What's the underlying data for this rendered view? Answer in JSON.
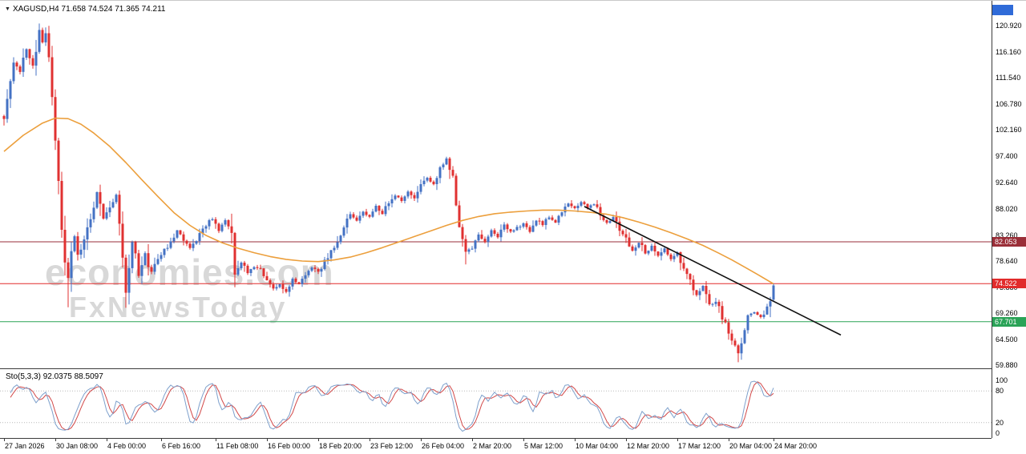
{
  "header": {
    "symbol_line": "XAGUSD,H4 71.658 74.524 71.365 74.211"
  },
  "watermark": {
    "line1": "economies.com",
    "line2": "FxNewsToday"
  },
  "y_axis": {
    "ticks": [
      "120.920",
      "116.160",
      "111.540",
      "106.780",
      "102.160",
      "97.400",
      "92.640",
      "88.020",
      "83.260",
      "78.640",
      "73.880",
      "69.260",
      "64.500",
      "59.880"
    ]
  },
  "x_axis": {
    "labels": [
      {
        "t": "27 Jan 2026",
        "i": 0
      },
      {
        "t": "30 Jan 08:00",
        "i": 16
      },
      {
        "t": "4 Feb 00:00",
        "i": 32
      },
      {
        "t": "6 Feb 16:00",
        "i": 49
      },
      {
        "t": "11 Feb 08:00",
        "i": 66
      },
      {
        "t": "16 Feb 00:00",
        "i": 82
      },
      {
        "t": "18 Feb 20:00",
        "i": 98
      },
      {
        "t": "23 Feb 12:00",
        "i": 114
      },
      {
        "t": "26 Feb 04:00",
        "i": 130
      },
      {
        "t": "2 Mar 20:00",
        "i": 146
      },
      {
        "t": "5 Mar 12:00",
        "i": 162
      },
      {
        "t": "10 Mar 04:00",
        "i": 178
      },
      {
        "t": "12 Mar 20:00",
        "i": 194
      },
      {
        "t": "17 Mar 12:00",
        "i": 210
      },
      {
        "t": "20 Mar 04:00",
        "i": 226
      },
      {
        "t": "24 Mar 20:00",
        "i": 240
      }
    ]
  },
  "price_labels": [
    {
      "text": "82.053",
      "price": 82.053,
      "color": "#9a2e38"
    },
    {
      "text": "74.522",
      "price": 74.522,
      "color": "#e12b2b"
    },
    {
      "text": "67.701",
      "price": 67.701,
      "color": "#2aa357"
    }
  ],
  "top_badge": {
    "color": "#2f6bd8"
  },
  "indicator": {
    "label": "Sto(5,3,3) 92.0375 88.5097",
    "name": "Stochastic Oscillator",
    "params": "5,3,3",
    "levels": [
      {
        "text": "100",
        "value": 100
      },
      {
        "text": "80",
        "value": 80
      },
      {
        "text": "20",
        "value": 20
      },
      {
        "text": "0",
        "value": 0
      }
    ]
  },
  "chart_data": {
    "type": "candlestick",
    "symbol": "XAGUSD",
    "timeframe": "H4",
    "title": "XAGUSD,H4",
    "ohlc_current": {
      "open": 71.658,
      "high": 74.524,
      "low": 71.365,
      "close": 74.211
    },
    "ylim": [
      59.88,
      120.92
    ],
    "candle_count": 241,
    "close_anchors": [
      [
        0,
        104.5
      ],
      [
        2,
        110
      ],
      [
        3,
        114
      ],
      [
        5,
        112.5
      ],
      [
        7,
        116.5
      ],
      [
        9,
        114
      ],
      [
        11,
        120.3
      ],
      [
        12,
        118
      ],
      [
        13,
        119.5
      ],
      [
        14,
        116
      ],
      [
        15,
        108
      ],
      [
        16,
        100
      ],
      [
        17,
        93
      ],
      [
        18,
        84
      ],
      [
        19,
        78
      ],
      [
        20,
        76
      ],
      [
        21,
        80
      ],
      [
        22,
        83
      ],
      [
        23,
        80
      ],
      [
        25,
        82
      ],
      [
        26,
        85
      ],
      [
        28,
        88.5
      ],
      [
        29,
        91
      ],
      [
        31,
        86
      ],
      [
        33,
        88.5
      ],
      [
        35,
        91
      ],
      [
        36,
        86
      ],
      [
        37,
        80
      ],
      [
        38,
        72.5
      ],
      [
        40,
        82
      ],
      [
        42,
        76
      ],
      [
        44,
        80
      ],
      [
        46,
        76.5
      ],
      [
        48,
        79
      ],
      [
        50,
        80.5
      ],
      [
        52,
        82
      ],
      [
        54,
        84
      ],
      [
        56,
        82.5
      ],
      [
        58,
        81
      ],
      [
        60,
        82.5
      ],
      [
        62,
        84.5
      ],
      [
        65,
        86.3
      ],
      [
        67,
        84
      ],
      [
        69,
        85.8
      ],
      [
        71,
        84.5
      ],
      [
        72,
        75.5
      ],
      [
        74,
        78.5
      ],
      [
        76,
        76.5
      ],
      [
        78,
        77.5
      ],
      [
        80,
        77
      ],
      [
        82,
        75
      ],
      [
        84,
        73.5
      ],
      [
        86,
        74.5
      ],
      [
        88,
        73
      ],
      [
        90,
        75.5
      ],
      [
        92,
        74.5
      ],
      [
        94,
        76
      ],
      [
        96,
        77.5
      ],
      [
        98,
        76.5
      ],
      [
        100,
        78.5
      ],
      [
        102,
        80.5
      ],
      [
        104,
        82
      ],
      [
        106,
        84.5
      ],
      [
        108,
        87
      ],
      [
        110,
        86
      ],
      [
        112,
        87.5
      ],
      [
        114,
        86.5
      ],
      [
        116,
        88.5
      ],
      [
        118,
        87
      ],
      [
        120,
        89
      ],
      [
        122,
        90.5
      ],
      [
        124,
        89.5
      ],
      [
        126,
        91
      ],
      [
        128,
        90
      ],
      [
        130,
        92
      ],
      [
        132,
        93.5
      ],
      [
        134,
        92.5
      ],
      [
        136,
        95
      ],
      [
        138,
        96.8
      ],
      [
        139,
        95
      ],
      [
        140,
        93
      ],
      [
        141,
        88
      ],
      [
        142,
        84
      ],
      [
        144,
        80.5
      ],
      [
        146,
        81
      ],
      [
        148,
        83.5
      ],
      [
        150,
        82
      ],
      [
        152,
        84
      ],
      [
        154,
        83
      ],
      [
        156,
        85
      ],
      [
        158,
        84
      ],
      [
        160,
        84.5
      ],
      [
        162,
        85.5
      ],
      [
        164,
        84
      ],
      [
        166,
        86
      ],
      [
        168,
        85
      ],
      [
        170,
        86.5
      ],
      [
        172,
        85.5
      ],
      [
        174,
        87.5
      ],
      [
        176,
        89
      ],
      [
        178,
        88
      ],
      [
        180,
        89.3
      ],
      [
        182,
        88
      ],
      [
        184,
        88.8
      ],
      [
        186,
        87
      ],
      [
        188,
        85.5
      ],
      [
        190,
        86.5
      ],
      [
        192,
        84
      ],
      [
        194,
        82.5
      ],
      [
        196,
        80.5
      ],
      [
        198,
        82
      ],
      [
        200,
        80
      ],
      [
        202,
        81.5
      ],
      [
        204,
        79.5
      ],
      [
        206,
        81
      ],
      [
        208,
        79
      ],
      [
        210,
        80
      ],
      [
        212,
        77.5
      ],
      [
        214,
        75.5
      ],
      [
        216,
        72.5
      ],
      [
        218,
        74
      ],
      [
        220,
        70.5
      ],
      [
        222,
        71.5
      ],
      [
        224,
        68.5
      ],
      [
        226,
        66
      ],
      [
        228,
        63.5
      ],
      [
        229,
        61.8
      ],
      [
        230,
        64.5
      ],
      [
        232,
        68.5
      ],
      [
        234,
        69.5
      ],
      [
        236,
        68.5
      ],
      [
        238,
        70
      ],
      [
        239,
        71.6
      ],
      [
        240,
        74.211
      ]
    ],
    "wick_overrides": [
      {
        "i": 11,
        "h": 121.3
      },
      {
        "i": 20,
        "l": 70.3
      },
      {
        "i": 38,
        "l": 70.2
      },
      {
        "i": 138,
        "h": 97.35
      },
      {
        "i": 144,
        "l": 78.0
      },
      {
        "i": 229,
        "l": 60.4
      }
    ],
    "ma_anchors": [
      [
        0,
        98.3
      ],
      [
        6,
        101.2
      ],
      [
        12,
        103.4
      ],
      [
        16,
        104.3
      ],
      [
        20,
        104.2
      ],
      [
        24,
        103.2
      ],
      [
        28,
        101.6
      ],
      [
        33,
        99.2
      ],
      [
        38,
        96.3
      ],
      [
        43,
        93.2
      ],
      [
        48,
        90.2
      ],
      [
        53,
        87.3
      ],
      [
        58,
        85
      ],
      [
        63,
        83.2
      ],
      [
        68,
        81.9
      ],
      [
        73,
        80.9
      ],
      [
        78,
        80.1
      ],
      [
        83,
        79.4
      ],
      [
        88,
        78.9
      ],
      [
        93,
        78.6
      ],
      [
        98,
        78.5
      ],
      [
        103,
        78.8
      ],
      [
        108,
        79.3
      ],
      [
        113,
        80.1
      ],
      [
        118,
        81
      ],
      [
        123,
        82
      ],
      [
        128,
        83
      ],
      [
        133,
        84
      ],
      [
        138,
        85
      ],
      [
        143,
        85.9
      ],
      [
        148,
        86.6
      ],
      [
        153,
        87.1
      ],
      [
        158,
        87.4
      ],
      [
        163,
        87.6
      ],
      [
        168,
        87.75
      ],
      [
        173,
        87.75
      ],
      [
        178,
        87.6
      ],
      [
        183,
        87.35
      ],
      [
        188,
        87
      ],
      [
        193,
        86.4
      ],
      [
        198,
        85.6
      ],
      [
        203,
        84.7
      ],
      [
        208,
        83.7
      ],
      [
        213,
        82.6
      ],
      [
        218,
        81.4
      ],
      [
        223,
        80
      ],
      [
        227,
        78.8
      ],
      [
        231,
        77.5
      ],
      [
        235,
        76.2
      ],
      [
        240,
        74.5
      ]
    ],
    "trendline": {
      "from": [
        181,
        88.4
      ],
      "to": [
        261,
        65.3
      ],
      "color": "#101010"
    },
    "hlines": [
      82.053,
      74.522,
      67.701
    ],
    "stochastic": {
      "k": 5,
      "d": 3,
      "slowing": 3,
      "current_k": 92.0375,
      "current_d": 88.5097,
      "levels": [
        80,
        20
      ],
      "range": [
        0,
        100
      ]
    },
    "colors": {
      "up": "#4472c4",
      "down": "#e03131",
      "ma": "#ec9f3c",
      "stoch_k": "#7da0cc",
      "stoch_d": "#d24848"
    },
    "noise": {
      "seed": 9,
      "base_amp": 0.28,
      "slope_amp": 0.9,
      "wick_amp": 0.9
    }
  }
}
